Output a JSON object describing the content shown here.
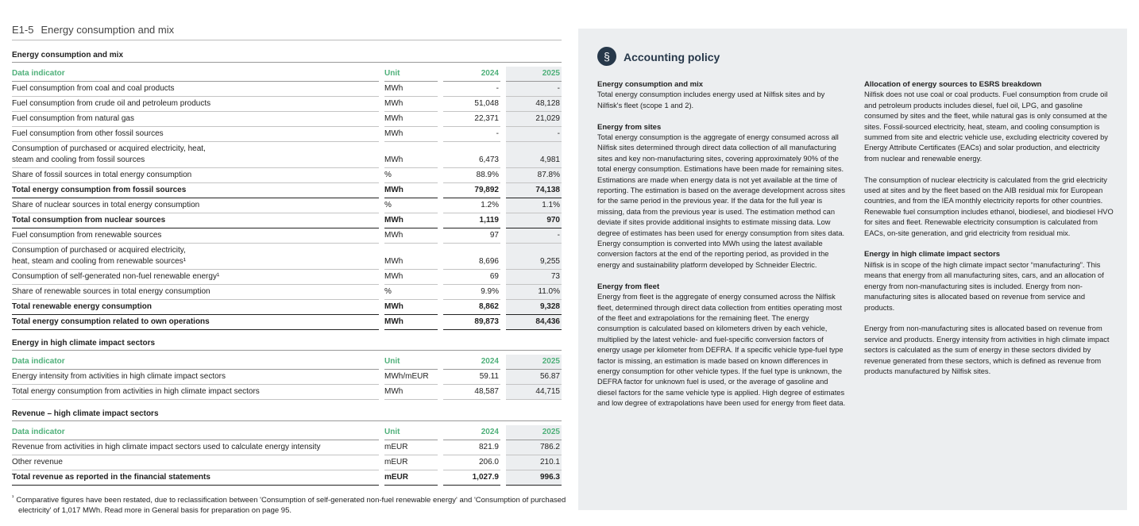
{
  "header": {
    "code": "E1-5",
    "title": "Energy consumption and mix"
  },
  "tables": [
    {
      "title": "Energy consumption and mix",
      "columns": [
        "Data indicator",
        "Unit",
        "2024",
        "2025"
      ],
      "rows": [
        {
          "cells": [
            "Fuel consumption from coal and coal products",
            "MWh",
            "-",
            "-"
          ]
        },
        {
          "cells": [
            "Fuel consumption from crude oil and petroleum products",
            "MWh",
            "51,048",
            "48,128"
          ]
        },
        {
          "cells": [
            "Fuel consumption from natural gas",
            "MWh",
            "22,371",
            "21,029"
          ]
        },
        {
          "cells": [
            "Fuel consumption from other fossil sources",
            "MWh",
            "-",
            "-"
          ]
        },
        {
          "cells": [
            "Consumption of purchased or acquired electricity, heat,\nsteam and cooling from fossil sources",
            "MWh",
            "6,473",
            "4,981"
          ]
        },
        {
          "cells": [
            "Share of fossil sources in total energy consumption",
            "%",
            "88.9%",
            "87.8%"
          ]
        },
        {
          "cells": [
            "Total energy consumption from fossil sources",
            "MWh",
            "79,892",
            "74,138"
          ],
          "bold": true
        },
        {
          "cells": [
            "Share of nuclear sources in total energy consumption",
            "%",
            "1.2%",
            "1.1%"
          ]
        },
        {
          "cells": [
            "Total consumption from nuclear sources",
            "MWh",
            "1,119",
            "970"
          ],
          "bold": true
        },
        {
          "cells": [
            "Fuel consumption from renewable sources",
            "MWh",
            "97",
            "-"
          ]
        },
        {
          "cells": [
            "Consumption of purchased or acquired electricity,\nheat, steam and cooling from renewable sources¹",
            "MWh",
            "8,696",
            "9,255"
          ]
        },
        {
          "cells": [
            "Consumption of self-generated non-fuel renewable energy¹",
            "MWh",
            "69",
            "73"
          ]
        },
        {
          "cells": [
            "Share of renewable sources in total energy consumption",
            "%",
            "9.9%",
            "11.0%"
          ]
        },
        {
          "cells": [
            "Total renewable energy consumption",
            "MWh",
            "8,862",
            "9,328"
          ],
          "bold": true
        },
        {
          "cells": [
            "Total energy consumption related to own operations",
            "MWh",
            "89,873",
            "84,436"
          ],
          "bold": true
        }
      ]
    },
    {
      "title": "Energy in high climate impact sectors",
      "columns": [
        "Data indicator",
        "Unit",
        "2024",
        "2025"
      ],
      "rows": [
        {
          "cells": [
            "Energy intensity from activities in high climate impact sectors",
            "MWh/mEUR",
            "59.11",
            "56.87"
          ]
        },
        {
          "cells": [
            "Total energy consumption from activities in high climate impact sectors",
            "MWh",
            "48,587",
            "44,715"
          ]
        }
      ]
    },
    {
      "title": "Revenue – high climate impact sectors",
      "columns": [
        "Data indicator",
        "Unit",
        "2024",
        "2025"
      ],
      "rows": [
        {
          "cells": [
            "Revenue from activities in high climate impact sectors used to calculate energy intensity",
            "mEUR",
            "821.9",
            "786.2"
          ]
        },
        {
          "cells": [
            "Other revenue",
            "mEUR",
            "206.0",
            "210.1"
          ]
        },
        {
          "cells": [
            "Total revenue as reported in the financial statements",
            "mEUR",
            "1,027.9",
            "996.3"
          ],
          "bold": true
        }
      ]
    }
  ],
  "footnote": {
    "mark": "¹",
    "text": "Comparative figures have been restated, due to reclassification between 'Consumption of self-generated non-fuel renewable energy' and 'Consumption of purchased electricity' of 1,017 MWh. Read more in General basis for preparation on page 95."
  },
  "policy": {
    "icon": "§",
    "title": "Accounting policy",
    "columns": [
      [
        {
          "heading": "Energy consumption and mix",
          "paragraphs": [
            "Total energy consumption includes energy used at Nilfisk sites and by Nilfisk's fleet (scope 1 and 2)."
          ]
        },
        {
          "heading": "Energy from sites",
          "paragraphs": [
            "Total energy consumption is the aggregate of energy consumed across all Nilfisk sites determined through direct data collection of all manufacturing sites and key non-manufacturing sites, covering approximately 90% of the total energy consumption. Estimations have been made for remaining sites. Estimations are made when energy data is not yet available at the time of reporting. The estimation is based on the average development across sites for the same period in the previous year. If the data for the full year is missing, data from the previous year is used. The estimation method can deviate if sites provide additional insights to estimate missing data. Low degree of estimates has been used for energy consumption from sites data. Energy consumption is converted into MWh using the latest available conversion factors at the end of the reporting period, as provided in the energy and sustainability platform developed by Schneider Electric."
          ]
        },
        {
          "heading": "Energy from fleet",
          "paragraphs": [
            "Energy from fleet is the aggregate of energy consumed across the Nilfisk fleet, determined through direct data collection from entities operating most of the fleet and extrapolations for the remaining fleet. The energy consumption is calculated based on kilometers driven by each vehicle, multiplied by the latest vehicle- and fuel-specific conversion factors of energy usage per kilometer from DEFRA. If a specific vehicle type-fuel type factor is missing, an estimation is made based on known differences in energy consumption for other vehicle types. If the fuel type is unknown, the DEFRA factor for unknown fuel is used, or the average of gasoline and diesel factors for the same vehicle type is applied. High degree of estimates and low degree of extrapolations have been used for energy from fleet data."
          ]
        }
      ],
      [
        {
          "heading": "Allocation of energy sources to ESRS breakdown",
          "paragraphs": [
            "Nilfisk does not use coal or coal products. Fuel consumption from crude oil and petroleum products includes diesel, fuel oil, LPG, and gasoline consumed by sites and the fleet, while natural gas is only consumed at the sites. Fossil-sourced electricity, heat, steam, and cooling consumption is summed from site and electric vehicle use, excluding electricity covered by Energy Attribute Certificates (EACs) and solar production, and electricity from nuclear and renewable energy.",
            "The consumption of nuclear electricity is calculated from the grid electricity used at sites and by the fleet based on the AIB residual mix for European countries, and from the IEA monthly electricity reports for other countries. Renewable fuel consumption includes ethanol, biodiesel, and biodiesel HVO for sites and fleet. Renewable electricity consumption is calculated from EACs, on-site generation, and grid electricity from residual mix."
          ]
        },
        {
          "heading": "Energy in high climate impact sectors",
          "paragraphs": [
            "Nilfisk is in scope of the high climate impact sector “manufacturing”. This means that energy from all manufacturing sites, cars, and an allocation of energy from non-manufacturing sites is included. Energy from non-manufacturing sites is allocated based on revenue from service and products.",
            "Energy from non-manufacturing sites is allocated based on revenue from service and products. Energy intensity from activities in high climate impact sectors is calculated as the sum of energy in these sectors divided by revenue generated from these sectors, which is defined as revenue from products manufactured by Nilfisk sites."
          ]
        }
      ]
    ]
  }
}
